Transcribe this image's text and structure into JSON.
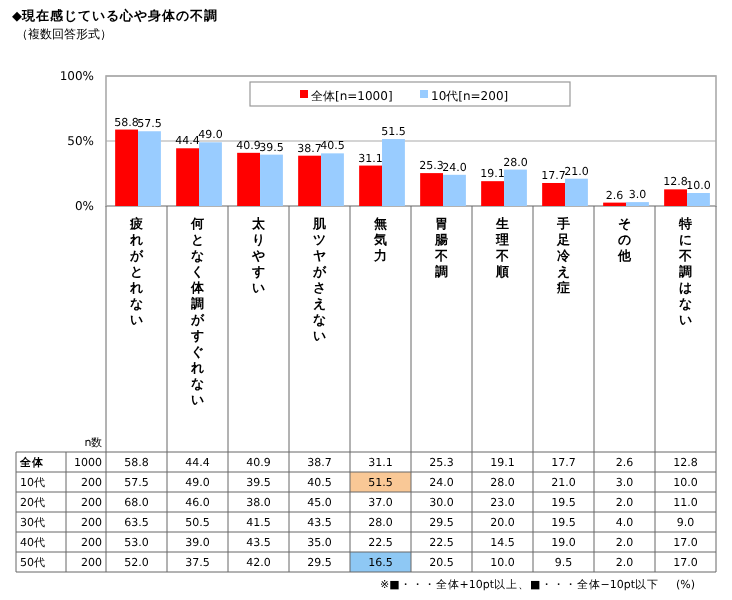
{
  "chart_data": [
    {
      "type": "bar",
      "title": "◆現在感じている心や身体の不調",
      "subtitle": "（複数回答形式）",
      "categories": [
        "疲れがとれない",
        "何となく体調がすぐれない",
        "太りやすい",
        "肌ツヤがさえない",
        "無気力",
        "胃腸不調",
        "生理不順",
        "手足冷え症",
        "その他",
        "特に不調はない"
      ],
      "series": [
        {
          "name": "全体[n=1000]",
          "color": "#ff0000",
          "values": [
            58.8,
            44.4,
            40.9,
            38.7,
            31.1,
            25.3,
            19.1,
            17.7,
            2.6,
            12.8
          ],
          "value_labels": [
            "58.8",
            "44.4",
            "40.9",
            "38.7",
            "31.1",
            "25.3",
            "19.1",
            "17.7",
            "2.6",
            "12.8"
          ]
        },
        {
          "name": "10代[n=200]",
          "color": "#99ccff",
          "values": [
            57.5,
            49.0,
            39.5,
            40.5,
            51.5,
            24.0,
            28.0,
            21.0,
            3.0,
            10.0
          ],
          "value_labels": [
            "57.5",
            "49.0",
            "39.5",
            "40.5",
            "51.5",
            "24.0",
            "28.0",
            "21.0",
            "3.0",
            "10.0"
          ]
        }
      ],
      "ylim": [
        0,
        100
      ],
      "yticks": [
        {
          "value": 0,
          "label": "0%"
        },
        {
          "value": 50,
          "label": "50%"
        },
        {
          "value": 100,
          "label": "100%"
        }
      ],
      "grid": "y",
      "legend": "top"
    },
    {
      "type": "heatmap",
      "categories": [
        null,
        null,
        null,
        null,
        null,
        null,
        null,
        null,
        null,
        null
      ],
      "y_categories": [
        "全体",
        "10代",
        "20代",
        "30代",
        "40代",
        "50代"
      ],
      "y2_categories": [
        "1000",
        "200",
        "200",
        "200",
        "200",
        "200"
      ],
      "cells": [
        [
          58.8,
          44.4,
          40.9,
          38.7,
          31.1,
          25.3,
          19.1,
          17.7,
          2.6,
          12.8
        ],
        [
          57.5,
          49.0,
          39.5,
          40.5,
          51.5,
          24.0,
          28.0,
          21.0,
          3.0,
          10.0
        ],
        [
          68.0,
          46.0,
          38.0,
          45.0,
          37.0,
          30.0,
          23.0,
          19.5,
          2.0,
          11.0
        ],
        [
          63.5,
          50.5,
          41.5,
          43.5,
          28.0,
          29.5,
          20.0,
          19.5,
          4.0,
          9.0
        ],
        [
          53.0,
          39.0,
          43.5,
          35.0,
          22.5,
          22.5,
          14.5,
          19.0,
          2.0,
          17.0
        ],
        [
          52.0,
          37.5,
          42.0,
          29.5,
          16.5,
          20.5,
          10.0,
          9.5,
          2.0,
          17.0
        ]
      ],
      "cell_labels": [
        [
          "58.8",
          "44.4",
          "40.9",
          "38.7",
          "31.1",
          "25.3",
          "19.1",
          "17.7",
          "2.6",
          "12.8"
        ],
        [
          "57.5",
          "49.0",
          "39.5",
          "40.5",
          "51.5",
          "24.0",
          "28.0",
          "21.0",
          "3.0",
          "10.0"
        ],
        [
          "68.0",
          "46.0",
          "38.0",
          "45.0",
          "37.0",
          "30.0",
          "23.0",
          "19.5",
          "2.0",
          "11.0"
        ],
        [
          "63.5",
          "50.5",
          "41.5",
          "43.5",
          "28.0",
          "29.5",
          "20.0",
          "19.5",
          "4.0",
          "9.0"
        ],
        [
          "53.0",
          "39.0",
          "43.5",
          "35.0",
          "22.5",
          "22.5",
          "14.5",
          "19.0",
          "2.0",
          "17.0"
        ],
        [
          "52.0",
          "37.5",
          "42.0",
          "29.5",
          "16.5",
          "20.5",
          "10.0",
          "9.5",
          "2.0",
          "17.0"
        ]
      ],
      "tick_labels": "y",
      "annotations": [
        "n数",
        "※■・・・全体+10pt以上、■・・・全体−10pt以下",
        "(%)"
      ]
    }
  ]
}
